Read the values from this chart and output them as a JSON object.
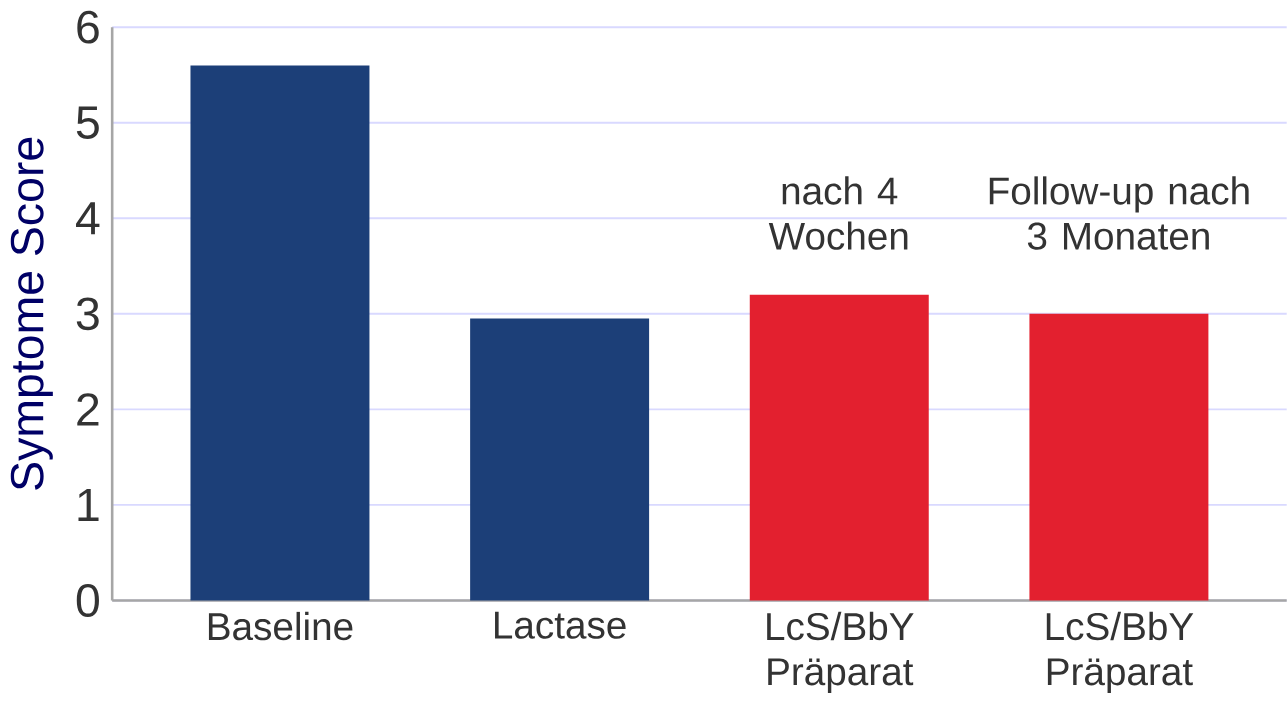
{
  "chart_data": {
    "type": "bar",
    "ylabel": "Symptome Score",
    "categories": [
      "Baseline",
      "Lactase",
      "LcS/BbY Präparat",
      "LcS/BbY Präparat"
    ],
    "values": [
      5.6,
      2.95,
      3.2,
      3.0
    ],
    "colors": [
      "#1c3f78",
      "#1c3f78",
      "#e3202f",
      "#e3202f"
    ],
    "annotations": [
      "nach 4 Wochen",
      "Follow-up nach 3 Monaten"
    ],
    "ylim": [
      0,
      6
    ],
    "yticks": [
      0,
      1,
      2,
      3,
      4,
      5,
      6
    ],
    "grid": "y"
  }
}
